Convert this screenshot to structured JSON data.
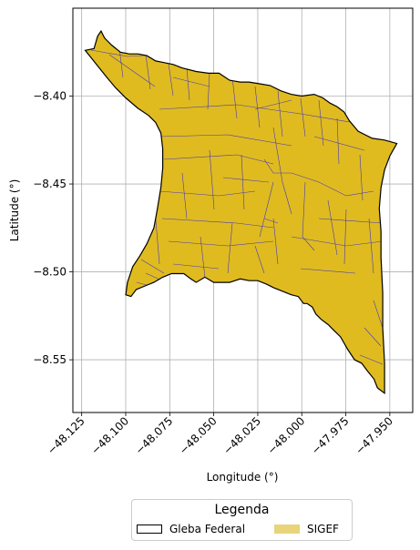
{
  "chart_data": {
    "type": "map",
    "xlabel": "Longitude (°)",
    "ylabel": "Latitude (°)",
    "xlim": [
      -48.13,
      -47.937
    ],
    "ylim": [
      -8.58,
      -8.35
    ],
    "x_ticks": [
      -48.125,
      -48.1,
      -48.075,
      -48.05,
      -48.025,
      -48.0,
      -47.975,
      -47.95
    ],
    "x_tick_labels": [
      "−48.125",
      "−48.100",
      "−48.075",
      "−48.050",
      "−48.025",
      "−48.000",
      "−47.975",
      "−47.950"
    ],
    "y_ticks": [
      -8.4,
      -8.45,
      -8.5,
      -8.55
    ],
    "y_tick_labels": [
      "−8.40",
      "−8.45",
      "−8.50",
      "−8.55"
    ],
    "grid": true,
    "legend": {
      "title": "Legenda",
      "placement": "bottom-center",
      "entries": [
        {
          "label": "Gleba Federal",
          "style": "outline",
          "color": "#000000"
        },
        {
          "label": "SIGEF",
          "style": "fill",
          "color": "#e8d47a"
        }
      ]
    },
    "fill_color": "#dfbb20",
    "parcel_line_color": "#4b3ab8",
    "outline": [
      [
        -48.123,
        -8.374
      ],
      [
        -48.118,
        -8.373
      ],
      [
        -48.116,
        -8.366
      ],
      [
        -48.114,
        -8.363
      ],
      [
        -48.112,
        -8.367
      ],
      [
        -48.108,
        -8.371
      ],
      [
        -48.103,
        -8.375
      ],
      [
        -48.098,
        -8.376
      ],
      [
        -48.093,
        -8.376
      ],
      [
        -48.088,
        -8.377
      ],
      [
        -48.083,
        -8.38
      ],
      [
        -48.078,
        -8.381
      ],
      [
        -48.073,
        -8.382
      ],
      [
        -48.068,
        -8.384
      ],
      [
        -48.06,
        -8.386
      ],
      [
        -48.053,
        -8.387
      ],
      [
        -48.047,
        -8.387
      ],
      [
        -48.041,
        -8.391
      ],
      [
        -48.035,
        -8.392
      ],
      [
        -48.03,
        -8.392
      ],
      [
        -48.024,
        -8.393
      ],
      [
        -48.018,
        -8.394
      ],
      [
        -48.012,
        -8.397
      ],
      [
        -48.006,
        -8.399
      ],
      [
        -48.0,
        -8.4
      ],
      [
        -47.993,
        -8.399
      ],
      [
        -47.988,
        -8.401
      ],
      [
        -47.984,
        -8.404
      ],
      [
        -47.98,
        -8.406
      ],
      [
        -47.976,
        -8.409
      ],
      [
        -47.973,
        -8.414
      ],
      [
        -47.968,
        -8.42
      ],
      [
        -47.96,
        -8.424
      ],
      [
        -47.953,
        -8.425
      ],
      [
        -47.946,
        -8.427
      ],
      [
        -47.95,
        -8.434
      ],
      [
        -47.953,
        -8.442
      ],
      [
        -47.955,
        -8.452
      ],
      [
        -47.956,
        -8.464
      ],
      [
        -47.955,
        -8.477
      ],
      [
        -47.955,
        -8.492
      ],
      [
        -47.954,
        -8.512
      ],
      [
        -47.954,
        -8.532
      ],
      [
        -47.953,
        -8.552
      ],
      [
        -47.953,
        -8.569
      ],
      [
        -47.957,
        -8.566
      ],
      [
        -47.959,
        -8.561
      ],
      [
        -47.963,
        -8.556
      ],
      [
        -47.966,
        -8.552
      ],
      [
        -47.97,
        -8.55
      ],
      [
        -47.974,
        -8.544
      ],
      [
        -47.978,
        -8.537
      ],
      [
        -47.982,
        -8.533
      ],
      [
        -47.985,
        -8.53
      ],
      [
        -47.989,
        -8.527
      ],
      [
        -47.992,
        -8.524
      ],
      [
        -47.994,
        -8.52
      ],
      [
        -47.997,
        -8.518
      ],
      [
        -47.999,
        -8.518
      ],
      [
        -48.002,
        -8.514
      ],
      [
        -48.006,
        -8.513
      ],
      [
        -48.011,
        -8.511
      ],
      [
        -48.016,
        -8.509
      ],
      [
        -48.02,
        -8.507
      ],
      [
        -48.025,
        -8.505
      ],
      [
        -48.03,
        -8.505
      ],
      [
        -48.035,
        -8.504
      ],
      [
        -48.041,
        -8.506
      ],
      [
        -48.046,
        -8.506
      ],
      [
        -48.05,
        -8.506
      ],
      [
        -48.055,
        -8.503
      ],
      [
        -48.06,
        -8.506
      ],
      [
        -48.063,
        -8.504
      ],
      [
        -48.067,
        -8.501
      ],
      [
        -48.071,
        -8.501
      ],
      [
        -48.074,
        -8.501
      ],
      [
        -48.079,
        -8.503
      ],
      [
        -48.084,
        -8.506
      ],
      [
        -48.089,
        -8.508
      ],
      [
        -48.094,
        -8.51
      ],
      [
        -48.097,
        -8.514
      ],
      [
        -48.1,
        -8.513
      ],
      [
        -48.099,
        -8.506
      ],
      [
        -48.096,
        -8.497
      ],
      [
        -48.092,
        -8.491
      ],
      [
        -48.088,
        -8.484
      ],
      [
        -48.084,
        -8.475
      ],
      [
        -48.082,
        -8.464
      ],
      [
        -48.08,
        -8.452
      ],
      [
        -48.079,
        -8.441
      ],
      [
        -48.079,
        -8.43
      ],
      [
        -48.08,
        -8.421
      ],
      [
        -48.083,
        -8.415
      ],
      [
        -48.087,
        -8.411
      ],
      [
        -48.093,
        -8.407
      ],
      [
        -48.1,
        -8.401
      ],
      [
        -48.106,
        -8.395
      ],
      [
        -48.111,
        -8.389
      ],
      [
        -48.115,
        -8.384
      ],
      [
        -48.119,
        -8.379
      ]
    ]
  }
}
